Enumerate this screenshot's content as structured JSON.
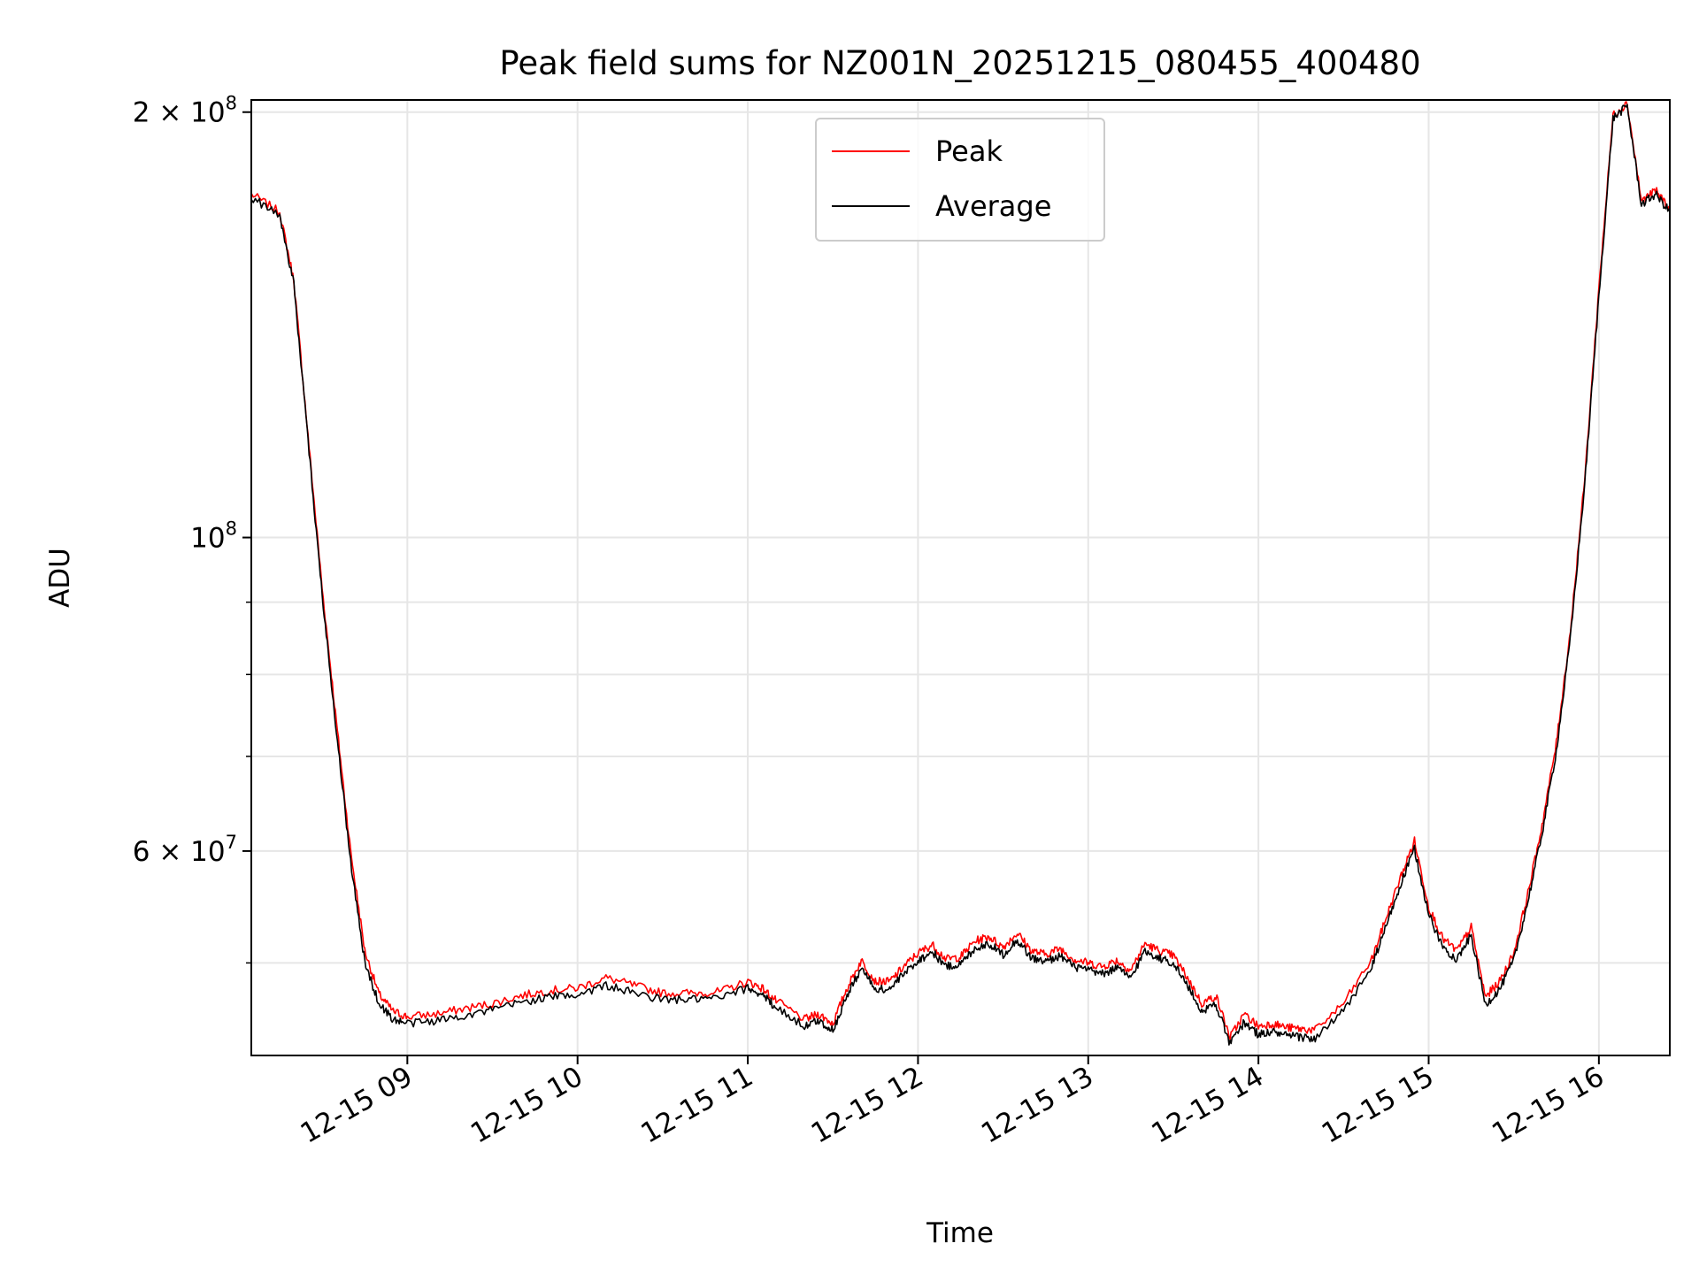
{
  "chart_data": {
    "type": "line",
    "title": "Peak field sums for NZ001N_20251215_080455_400480",
    "xlabel": "Time",
    "ylabel": "ADU",
    "yscale": "log",
    "grid": true,
    "legend_placement": "upper-center",
    "xlim": [
      "2025-12-15 08:05",
      "2025-12-15 16:25"
    ],
    "ylim": [
      43000000,
      204000000
    ],
    "x_ticks": [
      "12-15 09",
      "12-15 10",
      "12-15 11",
      "12-15 12",
      "12-15 13",
      "12-15 14",
      "12-15 15",
      "12-15 16"
    ],
    "y_ticks": [
      {
        "value": 200000000,
        "base": "2 × 10",
        "exp": "8"
      },
      {
        "value": 100000000,
        "base": "10",
        "exp": "8"
      },
      {
        "value": 60000000,
        "base": "6 × 10",
        "exp": "7"
      }
    ],
    "y_minor_ticks": [
      50000000,
      70000000,
      80000000,
      90000000
    ],
    "series_colors": {
      "Peak": "#ff0000",
      "Average": "#000000"
    },
    "series": [
      {
        "name": "Peak",
        "x": [
          "08:05",
          "08:15",
          "08:20",
          "08:25",
          "08:30",
          "08:35",
          "08:40",
          "08:45",
          "08:50",
          "08:55",
          "09:00",
          "09:10",
          "09:20",
          "09:30",
          "09:40",
          "09:50",
          "10:00",
          "10:10",
          "10:20",
          "10:30",
          "10:40",
          "10:50",
          "11:00",
          "11:05",
          "11:10",
          "11:20",
          "11:25",
          "11:30",
          "11:35",
          "11:40",
          "11:45",
          "11:50",
          "11:55",
          "12:00",
          "12:05",
          "12:10",
          "12:15",
          "12:20",
          "12:25",
          "12:30",
          "12:35",
          "12:40",
          "12:45",
          "12:50",
          "12:55",
          "13:00",
          "13:05",
          "13:10",
          "13:15",
          "13:20",
          "13:25",
          "13:30",
          "13:35",
          "13:40",
          "13:45",
          "13:50",
          "13:55",
          "14:00",
          "14:05",
          "14:10",
          "14:15",
          "14:20",
          "14:30",
          "14:40",
          "14:45",
          "14:50",
          "14:55",
          "15:00",
          "15:05",
          "15:10",
          "15:15",
          "15:20",
          "15:25",
          "15:30",
          "15:35",
          "15:40",
          "15:45",
          "15:50",
          "15:55",
          "16:00",
          "16:05",
          "16:10",
          "16:15",
          "16:20",
          "16:25"
        ],
        "y": [
          175000000,
          170000000,
          152000000,
          118000000,
          92000000,
          74000000,
          60000000,
          51000000,
          47500000,
          46200000,
          45800000,
          46000000,
          46400000,
          46800000,
          47400000,
          47800000,
          48000000,
          48800000,
          48200000,
          47600000,
          47600000,
          47700000,
          48500000,
          48000000,
          47000000,
          45600000,
          46000000,
          45300000,
          48000000,
          50200000,
          48500000,
          48500000,
          49700000,
          50800000,
          51500000,
          50300000,
          50500000,
          51800000,
          52200000,
          51300000,
          52500000,
          51000000,
          50700000,
          51200000,
          50300000,
          50000000,
          49700000,
          50200000,
          49400000,
          51600000,
          51000000,
          50600000,
          48800000,
          46800000,
          47400000,
          44300000,
          46000000,
          45100000,
          45300000,
          45000000,
          44900000,
          44800000,
          46800000,
          50300000,
          53800000,
          57400000,
          61000000,
          54800000,
          52000000,
          51000000,
          53000000,
          47300000,
          48500000,
          50800000,
          56000000,
          62600000,
          71500000,
          86000000,
          110000000,
          150000000,
          199000000,
          203000000,
          173000000,
          176000000,
          171000000
        ]
      },
      {
        "name": "Average",
        "x": [
          "08:05",
          "08:15",
          "08:20",
          "08:25",
          "08:30",
          "08:35",
          "08:40",
          "08:45",
          "08:50",
          "08:55",
          "09:00",
          "09:10",
          "09:20",
          "09:30",
          "09:40",
          "09:50",
          "10:00",
          "10:10",
          "10:20",
          "10:30",
          "10:40",
          "10:50",
          "11:00",
          "11:05",
          "11:10",
          "11:20",
          "11:25",
          "11:30",
          "11:35",
          "11:40",
          "11:45",
          "11:50",
          "11:55",
          "12:00",
          "12:05",
          "12:10",
          "12:15",
          "12:20",
          "12:25",
          "12:30",
          "12:35",
          "12:40",
          "12:45",
          "12:50",
          "12:55",
          "13:00",
          "13:05",
          "13:10",
          "13:15",
          "13:20",
          "13:25",
          "13:30",
          "13:35",
          "13:40",
          "13:45",
          "13:50",
          "13:55",
          "14:00",
          "14:05",
          "14:10",
          "14:15",
          "14:20",
          "14:30",
          "14:40",
          "14:45",
          "14:50",
          "14:55",
          "15:00",
          "15:05",
          "15:10",
          "15:15",
          "15:20",
          "15:25",
          "15:30",
          "15:35",
          "15:40",
          "15:45",
          "15:50",
          "15:55",
          "16:00",
          "16:05",
          "16:10",
          "16:15",
          "16:20",
          "16:25"
        ],
        "y": [
          174000000,
          169000000,
          151000000,
          117000000,
          91000000,
          73000000,
          59000000,
          50000000,
          46800000,
          45600000,
          45300000,
          45500000,
          45900000,
          46300000,
          46900000,
          47300000,
          47500000,
          48200000,
          47600000,
          47100000,
          47100000,
          47200000,
          48000000,
          47500000,
          46500000,
          45100000,
          45500000,
          44800000,
          47400000,
          49600000,
          47900000,
          47900000,
          49100000,
          50200000,
          50900000,
          49700000,
          49900000,
          51200000,
          51600000,
          50700000,
          51900000,
          50400000,
          50100000,
          50600000,
          49700000,
          49400000,
          49100000,
          49600000,
          48800000,
          51000000,
          50400000,
          50000000,
          48200000,
          46200000,
          46800000,
          43800000,
          45400000,
          44500000,
          44700000,
          44400000,
          44300000,
          44200000,
          46200000,
          49700000,
          53100000,
          56700000,
          60200000,
          54100000,
          51300000,
          50300000,
          52300000,
          46700000,
          47900000,
          50200000,
          55300000,
          61800000,
          70600000,
          85000000,
          109000000,
          148000000,
          198000000,
          202000000,
          172000000,
          175000000,
          170000000
        ]
      }
    ]
  }
}
